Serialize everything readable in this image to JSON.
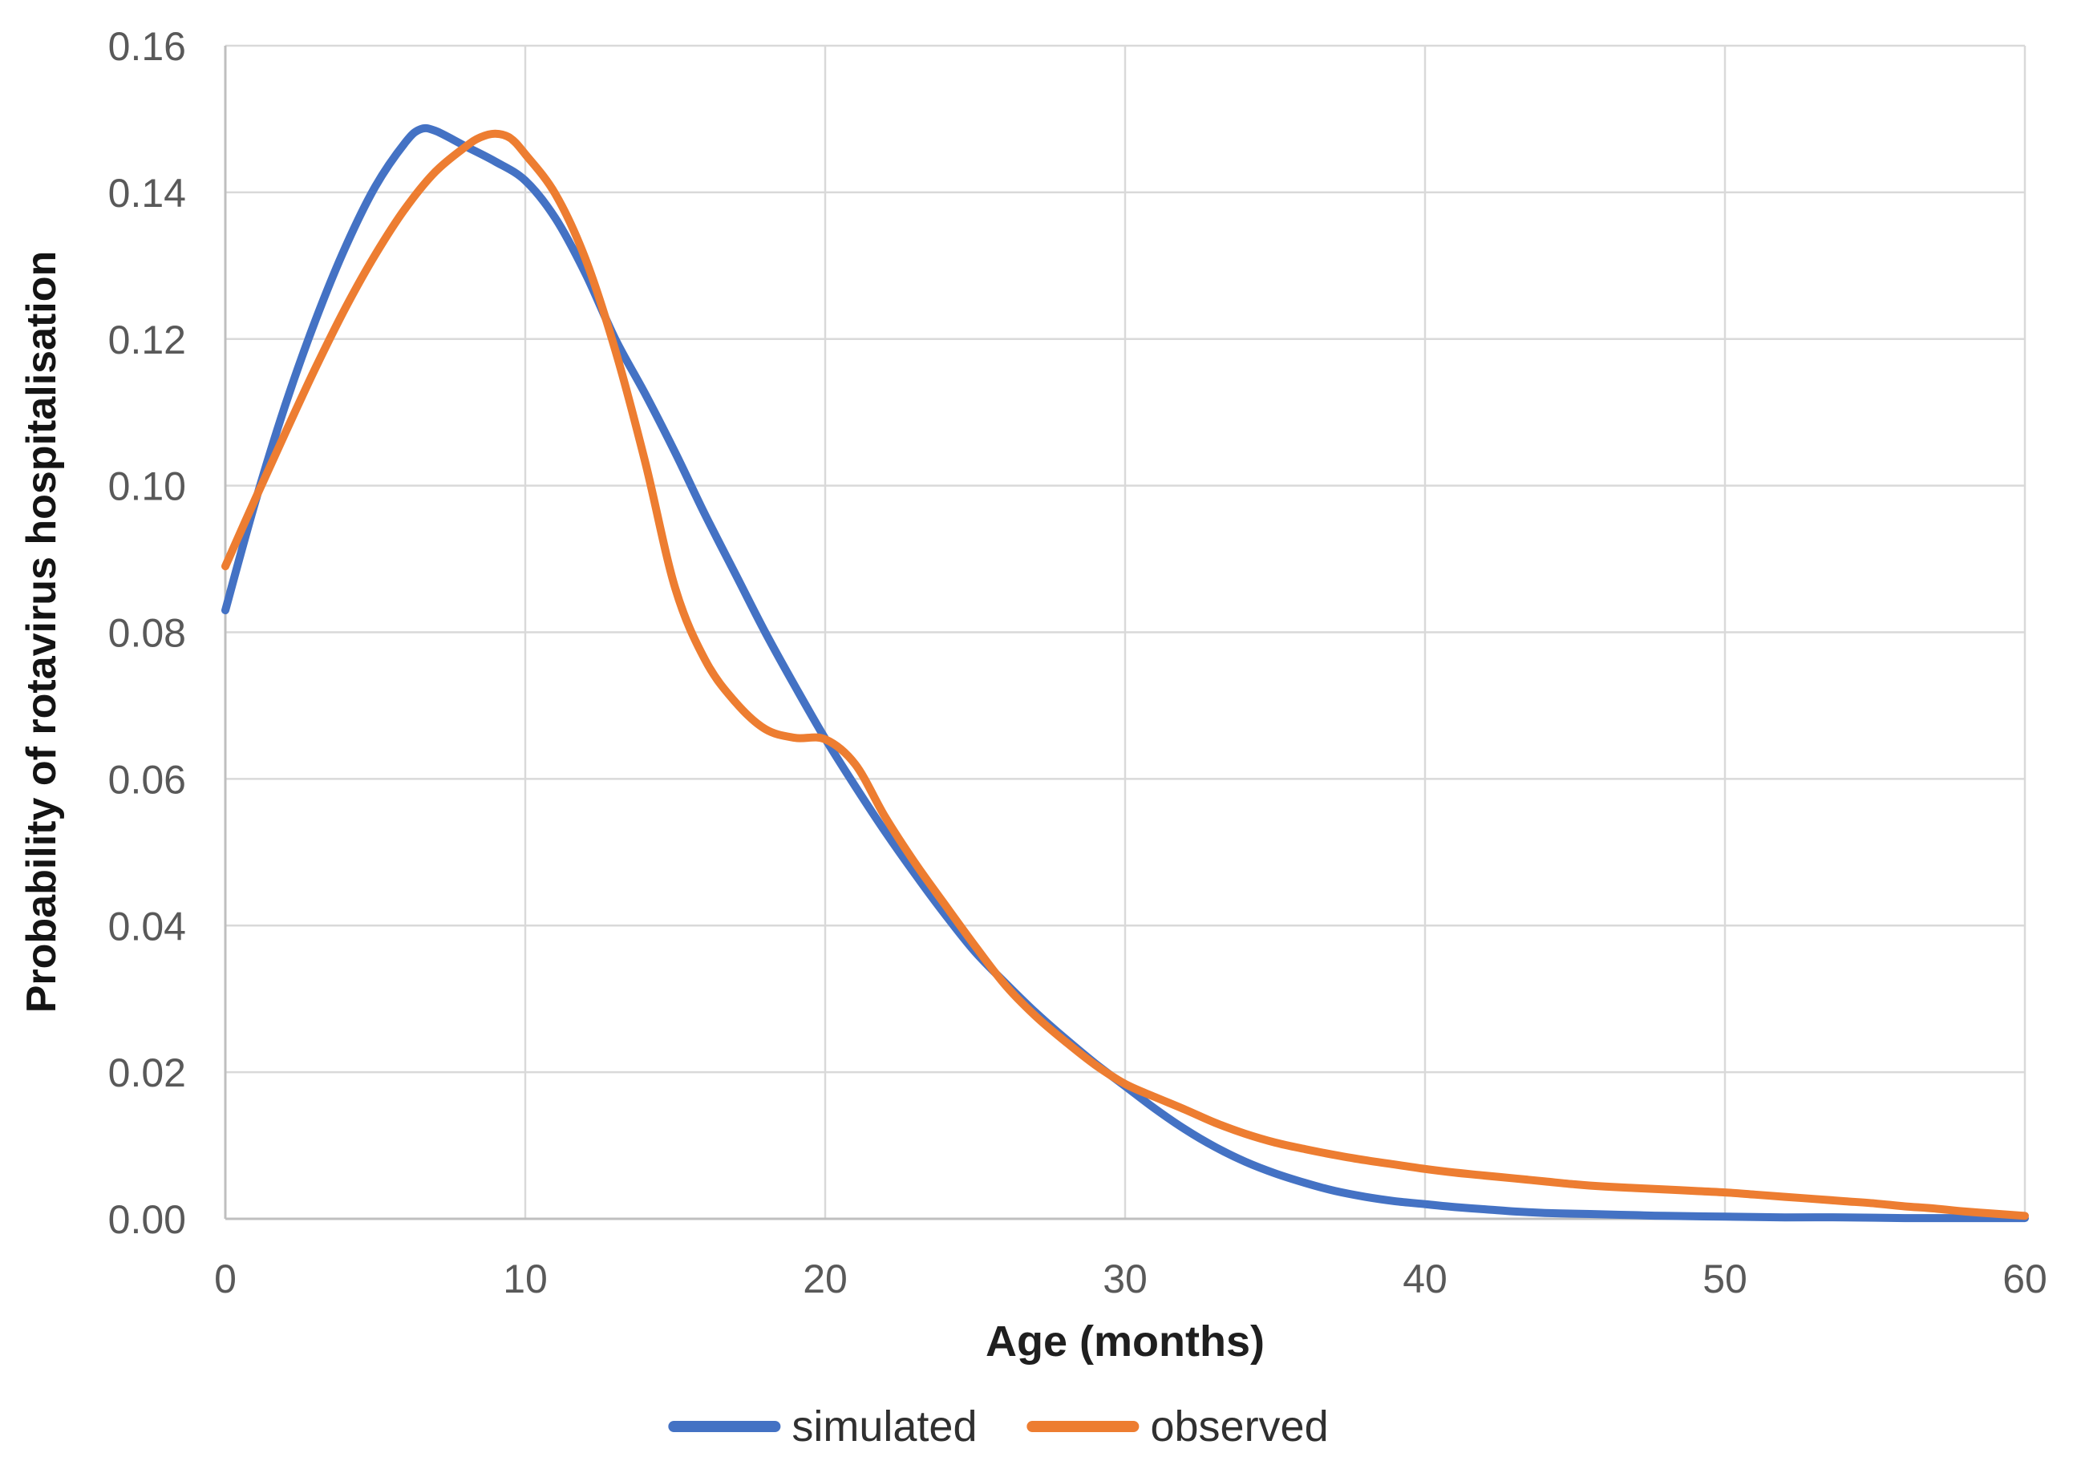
{
  "chart_data": {
    "type": "line",
    "title": "",
    "xlabel": "Age (months)",
    "ylabel": "Probability of rotavirus hospitalisation",
    "xlim": [
      0,
      60
    ],
    "ylim": [
      0,
      0.16
    ],
    "x_ticks": [
      0,
      10,
      20,
      30,
      40,
      50,
      60
    ],
    "y_ticks": [
      "0.00",
      "0.02",
      "0.04",
      "0.06",
      "0.08",
      "0.10",
      "0.12",
      "0.14",
      "0.16"
    ],
    "grid": true,
    "legend_position": "bottom",
    "colors": {
      "gridline": "#d9d9d9",
      "axis_line": "#bfbfbf",
      "tick_text": "#595959",
      "simulated": "#4472C4",
      "observed": "#ED7D31"
    },
    "series": [
      {
        "name": "simulated",
        "color": "#4472C4",
        "points": [
          [
            0,
            0.083
          ],
          [
            1,
            0.0978
          ],
          [
            2,
            0.111
          ],
          [
            3,
            0.1225
          ],
          [
            4,
            0.1325
          ],
          [
            5,
            0.1408
          ],
          [
            6,
            0.1468
          ],
          [
            6.5,
            0.1486
          ],
          [
            7,
            0.1484
          ],
          [
            8,
            0.1463
          ],
          [
            9,
            0.1442
          ],
          [
            10,
            0.1416
          ],
          [
            11,
            0.1365
          ],
          [
            12,
            0.129
          ],
          [
            13,
            0.12
          ],
          [
            14,
            0.1125
          ],
          [
            15,
            0.1045
          ],
          [
            16,
            0.096
          ],
          [
            17,
            0.088
          ],
          [
            18,
            0.08
          ],
          [
            19,
            0.0726
          ],
          [
            20,
            0.0655
          ],
          [
            21,
            0.059
          ],
          [
            22,
            0.0528
          ],
          [
            23,
            0.047
          ],
          [
            24,
            0.0415
          ],
          [
            25,
            0.0364
          ],
          [
            26,
            0.0322
          ],
          [
            27,
            0.0282
          ],
          [
            28,
            0.0246
          ],
          [
            29,
            0.0212
          ],
          [
            30,
            0.0181
          ],
          [
            31,
            0.015
          ],
          [
            32,
            0.0122
          ],
          [
            33,
            0.0098
          ],
          [
            34,
            0.0078
          ],
          [
            35,
            0.0062
          ],
          [
            36,
            0.0049
          ],
          [
            37,
            0.0038
          ],
          [
            38,
            0.003
          ],
          [
            39,
            0.0024
          ],
          [
            40,
            0.002
          ],
          [
            41,
            0.0016
          ],
          [
            42,
            0.0013
          ],
          [
            43,
            0.001
          ],
          [
            44,
            0.0008
          ],
          [
            45,
            0.0007
          ],
          [
            46,
            0.0006
          ],
          [
            47,
            0.0005
          ],
          [
            48,
            0.0004
          ],
          [
            50,
            0.0003
          ],
          [
            52,
            0.0002
          ],
          [
            54,
            0.0002
          ],
          [
            56,
            0.0001
          ],
          [
            58,
            0.0001
          ],
          [
            60,
            0.0001
          ]
        ]
      },
      {
        "name": "observed",
        "color": "#ED7D31",
        "points": [
          [
            0,
            0.089
          ],
          [
            1,
            0.0982
          ],
          [
            2,
            0.1072
          ],
          [
            3,
            0.116
          ],
          [
            4,
            0.1242
          ],
          [
            5,
            0.1315
          ],
          [
            6,
            0.1378
          ],
          [
            7,
            0.1428
          ],
          [
            8,
            0.1462
          ],
          [
            8.5,
            0.1475
          ],
          [
            9,
            0.148
          ],
          [
            9.5,
            0.1474
          ],
          [
            10,
            0.1452
          ],
          [
            11,
            0.1398
          ],
          [
            12,
            0.131
          ],
          [
            13,
            0.1185
          ],
          [
            14,
            0.1032
          ],
          [
            15,
            0.086
          ],
          [
            16,
            0.0762
          ],
          [
            17,
            0.0705
          ],
          [
            18,
            0.0668
          ],
          [
            19,
            0.0656
          ],
          [
            20,
            0.0654
          ],
          [
            21,
            0.062
          ],
          [
            22,
            0.0548
          ],
          [
            23,
            0.0485
          ],
          [
            24,
            0.0428
          ],
          [
            25,
            0.0372
          ],
          [
            26,
            0.0319
          ],
          [
            27,
            0.0277
          ],
          [
            28,
            0.0242
          ],
          [
            29,
            0.021
          ],
          [
            30,
            0.0184
          ],
          [
            31,
            0.0166
          ],
          [
            32,
            0.0149
          ],
          [
            33,
            0.0131
          ],
          [
            34,
            0.0116
          ],
          [
            35,
            0.0104
          ],
          [
            36,
            0.0095
          ],
          [
            37,
            0.0087
          ],
          [
            38,
            0.008
          ],
          [
            39,
            0.0074
          ],
          [
            40,
            0.0068
          ],
          [
            41,
            0.0063
          ],
          [
            42,
            0.0059
          ],
          [
            43,
            0.0055
          ],
          [
            44,
            0.0051
          ],
          [
            45,
            0.0047
          ],
          [
            46,
            0.0044
          ],
          [
            47,
            0.0042
          ],
          [
            48,
            0.004
          ],
          [
            49,
            0.0038
          ],
          [
            50,
            0.0036
          ],
          [
            51,
            0.0033
          ],
          [
            52,
            0.003
          ],
          [
            53,
            0.0027
          ],
          [
            54,
            0.0024
          ],
          [
            55,
            0.0021
          ],
          [
            56,
            0.0017
          ],
          [
            57,
            0.0014
          ],
          [
            58,
            0.001
          ],
          [
            59,
            0.0007
          ],
          [
            60,
            0.0004
          ]
        ]
      }
    ]
  },
  "legend": {
    "items": [
      {
        "label": "simulated",
        "color": "#4472C4"
      },
      {
        "label": "observed",
        "color": "#ED7D31"
      }
    ]
  }
}
